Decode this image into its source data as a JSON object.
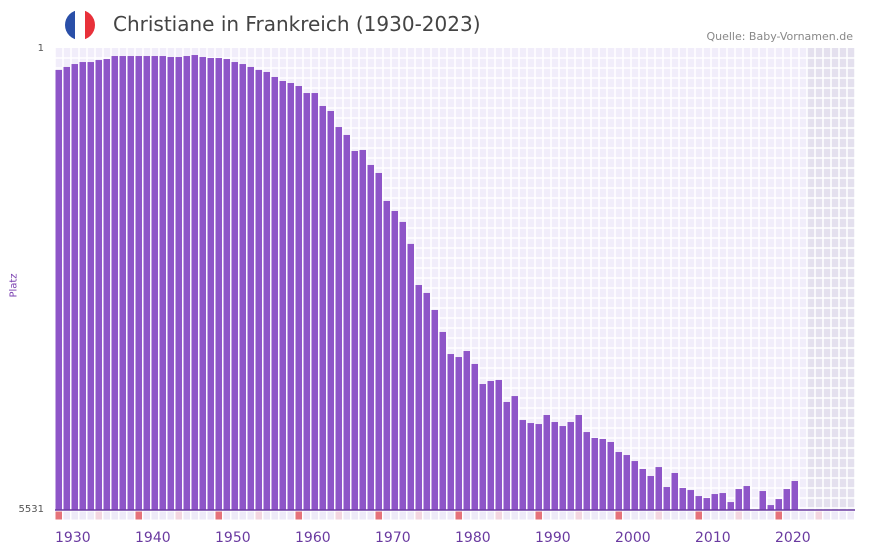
{
  "header": {
    "title": "Christiane in Frankreich (1930-2023)",
    "source": "Quelle: Baby-Vornamen.de",
    "flag_colors": [
      "#2a4fa8",
      "#ffffff",
      "#e8313a"
    ]
  },
  "chart_data": {
    "type": "bar",
    "title": "Christiane in Frankreich (1930-2023)",
    "ylabel": "Platz",
    "xlabel": "",
    "ylim": [
      1,
      5531
    ],
    "y_inverted": true,
    "yticks": [
      "1",
      "5531"
    ],
    "xticks": [
      "1930",
      "1940",
      "1950",
      "1960",
      "1970",
      "1980",
      "1990",
      "2000",
      "2010",
      "2020"
    ],
    "x_range": [
      1930,
      2030
    ],
    "shaded_from": 2024,
    "colors": {
      "bar": "#8e55c8",
      "decade_marker": "#e5737a",
      "half_marker": "#f3d6e0",
      "marker": "#eeeaf8",
      "plot_bg": "#f1edfa",
      "shaded_bg": "#e4e0ee"
    },
    "years": [
      1930,
      1931,
      1932,
      1933,
      1934,
      1935,
      1936,
      1937,
      1938,
      1939,
      1940,
      1941,
      1942,
      1943,
      1944,
      1945,
      1946,
      1947,
      1948,
      1949,
      1950,
      1951,
      1952,
      1953,
      1954,
      1955,
      1956,
      1957,
      1958,
      1959,
      1960,
      1961,
      1962,
      1963,
      1964,
      1965,
      1966,
      1967,
      1968,
      1969,
      1970,
      1971,
      1972,
      1973,
      1974,
      1975,
      1976,
      1977,
      1978,
      1979,
      1980,
      1981,
      1982,
      1983,
      1984,
      1985,
      1986,
      1987,
      1988,
      1989,
      1990,
      1991,
      1992,
      1993,
      1994,
      1995,
      1996,
      1997,
      1998,
      1999,
      2000,
      2001,
      2002,
      2003,
      2004,
      2005,
      2006,
      2007,
      2008,
      2009,
      2010,
      2011,
      2012,
      2013,
      2014,
      2015,
      2016,
      2017,
      2018,
      2019,
      2020,
      2021,
      2022
    ],
    "values": [
      264,
      228,
      193,
      169,
      169,
      145,
      133,
      97,
      97,
      97,
      97,
      97,
      97,
      97,
      109,
      109,
      97,
      85,
      109,
      121,
      121,
      133,
      169,
      193,
      228,
      264,
      288,
      348,
      396,
      420,
      456,
      540,
      540,
      695,
      755,
      947,
      1042,
      1234,
      1222,
      1401,
      1497,
      1832,
      1952,
      2083,
      2346,
      2838,
      2933,
      3137,
      3400,
      3664,
      3700,
      3628,
      3783,
      4023,
      3987,
      3975,
      4238,
      4167,
      4454,
      4490,
      4502,
      4394,
      4478,
      4526,
      4478,
      4394,
      4598,
      4669,
      4681,
      4717,
      4837,
      4873,
      4945,
      5040,
      5124,
      5017,
      5256,
      5088,
      5268,
      5292,
      5364,
      5388,
      5340,
      5328,
      5436,
      5280,
      5244,
      null,
      5304,
      5472,
      5400,
      5280,
      5184
    ]
  }
}
